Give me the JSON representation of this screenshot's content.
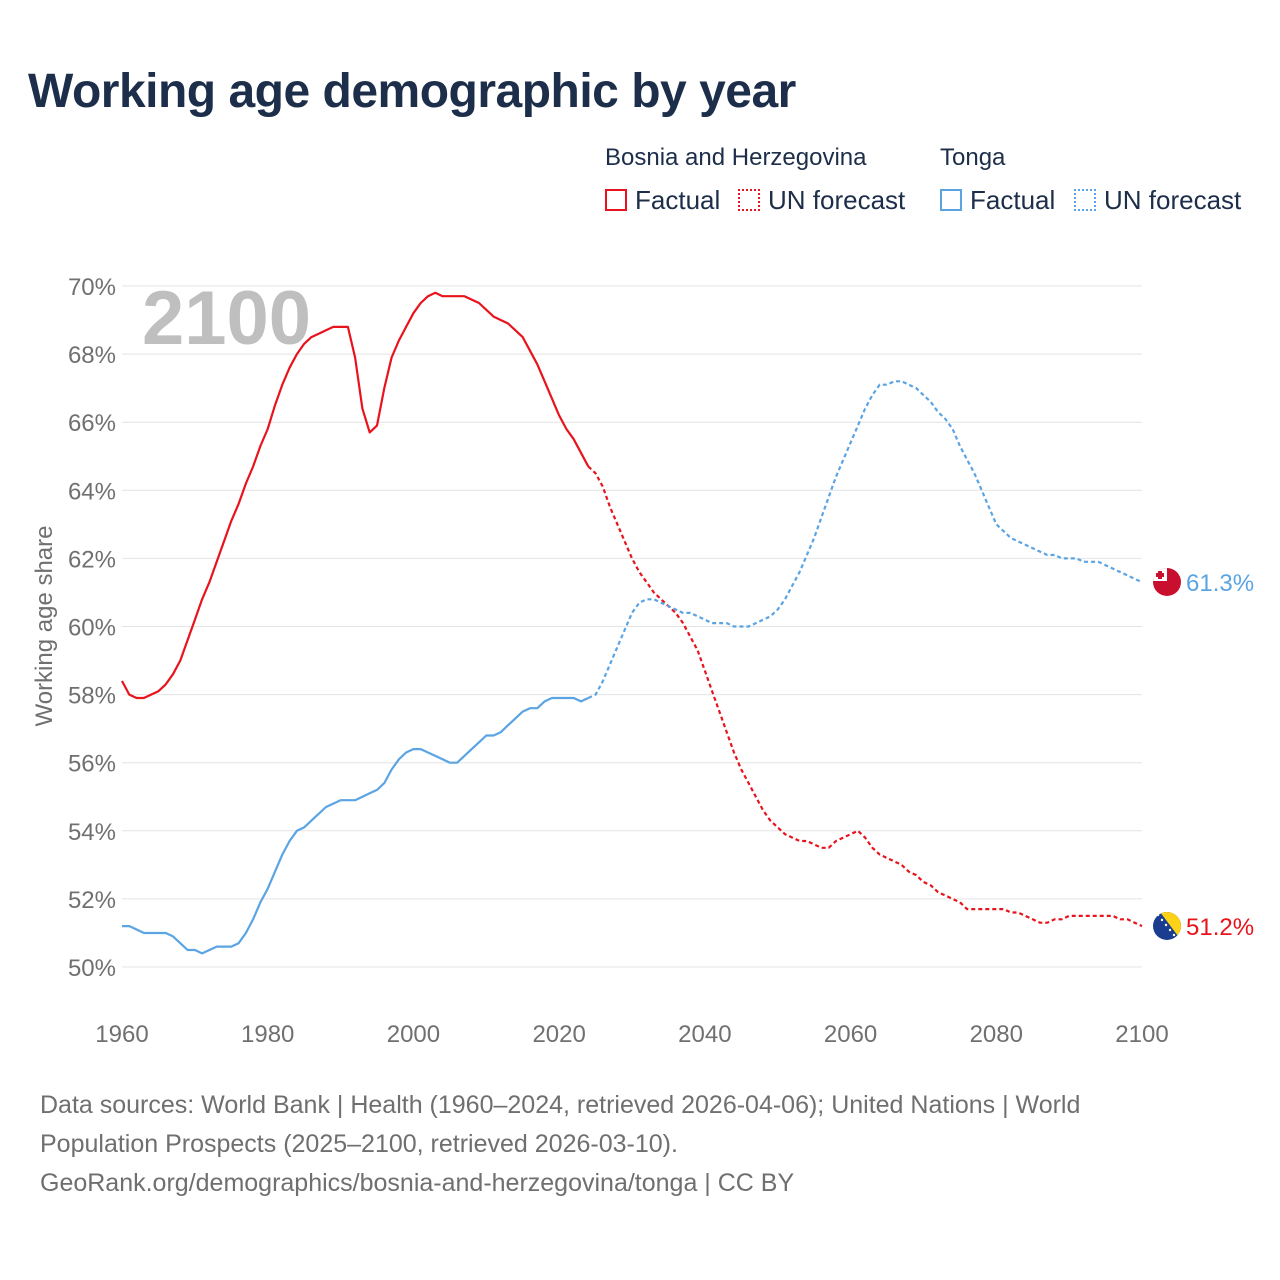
{
  "title": "Working age demographic by year",
  "legend": {
    "groups": [
      {
        "name": "Bosnia and Herzegovina",
        "factual_label": "Factual",
        "forecast_label": "UN forecast",
        "color": "#e8131c"
      },
      {
        "name": "Tonga",
        "factual_label": "Factual",
        "forecast_label": "UN forecast",
        "color": "#5ba4e3"
      }
    ]
  },
  "footer": {
    "line1": "Data sources: World Bank | Health (1960–2024, retrieved 2026-04-06); United Nations | World",
    "line2": "Population Prospects (2025–2100, retrieved 2026-03-10).",
    "line3": "GeoRank.org/demographics/bosnia-and-herzegovina/tonga | CC BY"
  },
  "chart_data": {
    "type": "line",
    "title": "Working age demographic by year",
    "watermark_year": "2100",
    "xlabel": "",
    "ylabel": "Working age share",
    "xlim": [
      1960,
      2100
    ],
    "ylim": [
      50,
      70
    ],
    "x_ticks": [
      1960,
      1980,
      2000,
      2020,
      2040,
      2060,
      2080,
      2100
    ],
    "y_ticks": [
      50,
      52,
      54,
      56,
      58,
      60,
      62,
      64,
      66,
      68,
      70
    ],
    "y_tick_labels": [
      "50%",
      "52%",
      "54%",
      "56%",
      "58%",
      "60%",
      "62%",
      "64%",
      "66%",
      "68%",
      "70%"
    ],
    "grid": true,
    "forecast_start": 2024,
    "series": [
      {
        "name": "Bosnia and Herzegovina",
        "color": "#e8131c",
        "end_label": "51.2%",
        "flag": "bosnia-flag-icon",
        "points": [
          [
            1960,
            58.4
          ],
          [
            1961,
            58.0
          ],
          [
            1962,
            57.9
          ],
          [
            1963,
            57.9
          ],
          [
            1964,
            58.0
          ],
          [
            1965,
            58.1
          ],
          [
            1966,
            58.3
          ],
          [
            1967,
            58.6
          ],
          [
            1968,
            59.0
          ],
          [
            1969,
            59.6
          ],
          [
            1970,
            60.2
          ],
          [
            1971,
            60.8
          ],
          [
            1972,
            61.3
          ],
          [
            1973,
            61.9
          ],
          [
            1974,
            62.5
          ],
          [
            1975,
            63.1
          ],
          [
            1976,
            63.6
          ],
          [
            1977,
            64.2
          ],
          [
            1978,
            64.7
          ],
          [
            1979,
            65.3
          ],
          [
            1980,
            65.8
          ],
          [
            1981,
            66.5
          ],
          [
            1982,
            67.1
          ],
          [
            1983,
            67.6
          ],
          [
            1984,
            68.0
          ],
          [
            1985,
            68.3
          ],
          [
            1986,
            68.5
          ],
          [
            1987,
            68.6
          ],
          [
            1988,
            68.7
          ],
          [
            1989,
            68.8
          ],
          [
            1990,
            68.8
          ],
          [
            1991,
            68.8
          ],
          [
            1992,
            67.9
          ],
          [
            1993,
            66.4
          ],
          [
            1994,
            65.7
          ],
          [
            1995,
            65.9
          ],
          [
            1996,
            67.0
          ],
          [
            1997,
            67.9
          ],
          [
            1998,
            68.4
          ],
          [
            1999,
            68.8
          ],
          [
            2000,
            69.2
          ],
          [
            2001,
            69.5
          ],
          [
            2002,
            69.7
          ],
          [
            2003,
            69.8
          ],
          [
            2004,
            69.7
          ],
          [
            2005,
            69.7
          ],
          [
            2006,
            69.7
          ],
          [
            2007,
            69.7
          ],
          [
            2008,
            69.6
          ],
          [
            2009,
            69.5
          ],
          [
            2010,
            69.3
          ],
          [
            2011,
            69.1
          ],
          [
            2012,
            69.0
          ],
          [
            2013,
            68.9
          ],
          [
            2014,
            68.7
          ],
          [
            2015,
            68.5
          ],
          [
            2016,
            68.1
          ],
          [
            2017,
            67.7
          ],
          [
            2018,
            67.2
          ],
          [
            2019,
            66.7
          ],
          [
            2020,
            66.2
          ],
          [
            2021,
            65.8
          ],
          [
            2022,
            65.5
          ],
          [
            2023,
            65.1
          ],
          [
            2024,
            64.7
          ],
          [
            2025,
            64.5
          ],
          [
            2026,
            64.1
          ],
          [
            2027,
            63.5
          ],
          [
            2028,
            63.0
          ],
          [
            2029,
            62.5
          ],
          [
            2030,
            62.0
          ],
          [
            2031,
            61.6
          ],
          [
            2032,
            61.3
          ],
          [
            2033,
            61.0
          ],
          [
            2034,
            60.8
          ],
          [
            2035,
            60.6
          ],
          [
            2036,
            60.4
          ],
          [
            2037,
            60.1
          ],
          [
            2038,
            59.7
          ],
          [
            2039,
            59.3
          ],
          [
            2040,
            58.7
          ],
          [
            2041,
            58.1
          ],
          [
            2042,
            57.5
          ],
          [
            2043,
            56.9
          ],
          [
            2044,
            56.3
          ],
          [
            2045,
            55.8
          ],
          [
            2046,
            55.4
          ],
          [
            2047,
            55.0
          ],
          [
            2048,
            54.6
          ],
          [
            2049,
            54.3
          ],
          [
            2050,
            54.1
          ],
          [
            2051,
            53.9
          ],
          [
            2052,
            53.8
          ],
          [
            2053,
            53.7
          ],
          [
            2054,
            53.7
          ],
          [
            2055,
            53.6
          ],
          [
            2056,
            53.5
          ],
          [
            2057,
            53.5
          ],
          [
            2058,
            53.7
          ],
          [
            2059,
            53.8
          ],
          [
            2060,
            53.9
          ],
          [
            2061,
            54.0
          ],
          [
            2062,
            53.8
          ],
          [
            2063,
            53.5
          ],
          [
            2064,
            53.3
          ],
          [
            2065,
            53.2
          ],
          [
            2066,
            53.1
          ],
          [
            2067,
            53.0
          ],
          [
            2068,
            52.8
          ],
          [
            2069,
            52.7
          ],
          [
            2070,
            52.5
          ],
          [
            2071,
            52.4
          ],
          [
            2072,
            52.2
          ],
          [
            2073,
            52.1
          ],
          [
            2074,
            52.0
          ],
          [
            2075,
            51.9
          ],
          [
            2076,
            51.7
          ],
          [
            2077,
            51.7
          ],
          [
            2078,
            51.7
          ],
          [
            2079,
            51.7
          ],
          [
            2080,
            51.7
          ],
          [
            2081,
            51.7
          ],
          [
            2082,
            51.6
          ],
          [
            2083,
            51.6
          ],
          [
            2084,
            51.5
          ],
          [
            2085,
            51.4
          ],
          [
            2086,
            51.3
          ],
          [
            2087,
            51.3
          ],
          [
            2088,
            51.4
          ],
          [
            2089,
            51.4
          ],
          [
            2090,
            51.5
          ],
          [
            2091,
            51.5
          ],
          [
            2092,
            51.5
          ],
          [
            2093,
            51.5
          ],
          [
            2094,
            51.5
          ],
          [
            2095,
            51.5
          ],
          [
            2096,
            51.5
          ],
          [
            2097,
            51.4
          ],
          [
            2098,
            51.4
          ],
          [
            2099,
            51.3
          ],
          [
            2100,
            51.2
          ]
        ]
      },
      {
        "name": "Tonga",
        "color": "#5ba4e3",
        "end_label": "61.3%",
        "flag": "tonga-flag-icon",
        "points": [
          [
            1960,
            51.2
          ],
          [
            1961,
            51.2
          ],
          [
            1962,
            51.1
          ],
          [
            1963,
            51.0
          ],
          [
            1964,
            51.0
          ],
          [
            1965,
            51.0
          ],
          [
            1966,
            51.0
          ],
          [
            1967,
            50.9
          ],
          [
            1968,
            50.7
          ],
          [
            1969,
            50.5
          ],
          [
            1970,
            50.5
          ],
          [
            1971,
            50.4
          ],
          [
            1972,
            50.5
          ],
          [
            1973,
            50.6
          ],
          [
            1974,
            50.6
          ],
          [
            1975,
            50.6
          ],
          [
            1976,
            50.7
          ],
          [
            1977,
            51.0
          ],
          [
            1978,
            51.4
          ],
          [
            1979,
            51.9
          ],
          [
            1980,
            52.3
          ],
          [
            1981,
            52.8
          ],
          [
            1982,
            53.3
          ],
          [
            1983,
            53.7
          ],
          [
            1984,
            54.0
          ],
          [
            1985,
            54.1
          ],
          [
            1986,
            54.3
          ],
          [
            1987,
            54.5
          ],
          [
            1988,
            54.7
          ],
          [
            1989,
            54.8
          ],
          [
            1990,
            54.9
          ],
          [
            1991,
            54.9
          ],
          [
            1992,
            54.9
          ],
          [
            1993,
            55.0
          ],
          [
            1994,
            55.1
          ],
          [
            1995,
            55.2
          ],
          [
            1996,
            55.4
          ],
          [
            1997,
            55.8
          ],
          [
            1998,
            56.1
          ],
          [
            1999,
            56.3
          ],
          [
            2000,
            56.4
          ],
          [
            2001,
            56.4
          ],
          [
            2002,
            56.3
          ],
          [
            2003,
            56.2
          ],
          [
            2004,
            56.1
          ],
          [
            2005,
            56.0
          ],
          [
            2006,
            56.0
          ],
          [
            2007,
            56.2
          ],
          [
            2008,
            56.4
          ],
          [
            2009,
            56.6
          ],
          [
            2010,
            56.8
          ],
          [
            2011,
            56.8
          ],
          [
            2012,
            56.9
          ],
          [
            2013,
            57.1
          ],
          [
            2014,
            57.3
          ],
          [
            2015,
            57.5
          ],
          [
            2016,
            57.6
          ],
          [
            2017,
            57.6
          ],
          [
            2018,
            57.8
          ],
          [
            2019,
            57.9
          ],
          [
            2020,
            57.9
          ],
          [
            2021,
            57.9
          ],
          [
            2022,
            57.9
          ],
          [
            2023,
            57.8
          ],
          [
            2024,
            57.9
          ],
          [
            2025,
            58.0
          ],
          [
            2026,
            58.4
          ],
          [
            2027,
            58.9
          ],
          [
            2028,
            59.4
          ],
          [
            2029,
            59.9
          ],
          [
            2030,
            60.4
          ],
          [
            2031,
            60.7
          ],
          [
            2032,
            60.8
          ],
          [
            2033,
            60.8
          ],
          [
            2034,
            60.7
          ],
          [
            2035,
            60.6
          ],
          [
            2036,
            60.5
          ],
          [
            2037,
            60.4
          ],
          [
            2038,
            60.4
          ],
          [
            2039,
            60.3
          ],
          [
            2040,
            60.2
          ],
          [
            2041,
            60.1
          ],
          [
            2042,
            60.1
          ],
          [
            2043,
            60.1
          ],
          [
            2044,
            60.0
          ],
          [
            2045,
            60.0
          ],
          [
            2046,
            60.0
          ],
          [
            2047,
            60.1
          ],
          [
            2048,
            60.2
          ],
          [
            2049,
            60.3
          ],
          [
            2050,
            60.5
          ],
          [
            2051,
            60.8
          ],
          [
            2052,
            61.2
          ],
          [
            2053,
            61.6
          ],
          [
            2054,
            62.1
          ],
          [
            2055,
            62.6
          ],
          [
            2056,
            63.2
          ],
          [
            2057,
            63.8
          ],
          [
            2058,
            64.4
          ],
          [
            2059,
            64.9
          ],
          [
            2060,
            65.4
          ],
          [
            2061,
            65.9
          ],
          [
            2062,
            66.4
          ],
          [
            2063,
            66.8
          ],
          [
            2064,
            67.1
          ],
          [
            2065,
            67.1
          ],
          [
            2066,
            67.2
          ],
          [
            2067,
            67.2
          ],
          [
            2068,
            67.1
          ],
          [
            2069,
            67.0
          ],
          [
            2070,
            66.8
          ],
          [
            2071,
            66.6
          ],
          [
            2072,
            66.3
          ],
          [
            2073,
            66.1
          ],
          [
            2074,
            65.8
          ],
          [
            2075,
            65.3
          ],
          [
            2076,
            64.9
          ],
          [
            2077,
            64.5
          ],
          [
            2078,
            64.0
          ],
          [
            2079,
            63.5
          ],
          [
            2080,
            63.0
          ],
          [
            2081,
            62.8
          ],
          [
            2082,
            62.6
          ],
          [
            2083,
            62.5
          ],
          [
            2084,
            62.4
          ],
          [
            2085,
            62.3
          ],
          [
            2086,
            62.2
          ],
          [
            2087,
            62.1
          ],
          [
            2088,
            62.1
          ],
          [
            2089,
            62.0
          ],
          [
            2090,
            62.0
          ],
          [
            2091,
            62.0
          ],
          [
            2092,
            61.9
          ],
          [
            2093,
            61.9
          ],
          [
            2094,
            61.9
          ],
          [
            2095,
            61.8
          ],
          [
            2096,
            61.7
          ],
          [
            2097,
            61.6
          ],
          [
            2098,
            61.5
          ],
          [
            2099,
            61.4
          ],
          [
            2100,
            61.3
          ]
        ]
      }
    ]
  }
}
